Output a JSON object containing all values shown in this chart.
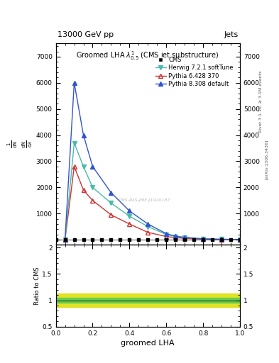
{
  "title_top": "13000 GeV pp",
  "title_right": "Jets",
  "plot_title": "Groomed LHA $\\lambda^{1}_{0.5}$ (CMS jet substructure)",
  "xlabel": "groomed LHA",
  "right_label1": "Rivet 3.1.10, ≥ 3.1M events",
  "right_label2": "[arXiv:1306.3436]",
  "cms_watermark": "CMS-PAS-JME-J1920187",
  "x_data": [
    0.05,
    0.1,
    0.15,
    0.2,
    0.3,
    0.4,
    0.5,
    0.6,
    0.65,
    0.7,
    0.8,
    0.9,
    1.0
  ],
  "herwig_y": [
    0,
    3700,
    2800,
    2000,
    1400,
    900,
    500,
    200,
    120,
    80,
    30,
    15,
    5
  ],
  "pythia6_y": [
    0,
    2800,
    1900,
    1500,
    950,
    600,
    280,
    120,
    80,
    50,
    20,
    10,
    3
  ],
  "pythia8_y": [
    0,
    6000,
    4000,
    2800,
    1800,
    1100,
    600,
    230,
    130,
    90,
    30,
    15,
    5
  ],
  "cms_x": [
    0.0,
    0.05,
    0.1,
    0.15,
    0.2,
    0.25,
    0.3,
    0.35,
    0.4,
    0.45,
    0.5,
    0.55,
    0.6,
    0.65,
    0.7,
    0.75,
    0.8,
    0.85,
    0.9,
    0.95,
    1.0
  ],
  "cms_y": [
    0,
    0,
    0,
    0,
    0,
    0,
    0,
    0,
    0,
    0,
    0,
    0,
    0,
    0,
    0,
    0,
    0,
    0,
    0,
    0,
    0
  ],
  "herwig_color": "#4ABAAB",
  "pythia6_color": "#CC3333",
  "pythia8_color": "#3355CC",
  "cms_color": "#000000",
  "ylim_main": [
    -200,
    7500
  ],
  "ylim_ratio": [
    0.5,
    2.05
  ],
  "yticks_main": [
    0,
    1000,
    2000,
    3000,
    4000,
    5000,
    6000,
    7000
  ],
  "yticks_ratio": [
    0.5,
    1.0,
    1.5,
    2.0
  ],
  "green_band": [
    0.95,
    1.05
  ],
  "yellow_band": [
    0.87,
    1.13
  ],
  "legend_labels": [
    "CMS",
    "Herwig 7.2.1 softTune",
    "Pythia 6.428 370",
    "Pythia 8.308 default"
  ]
}
